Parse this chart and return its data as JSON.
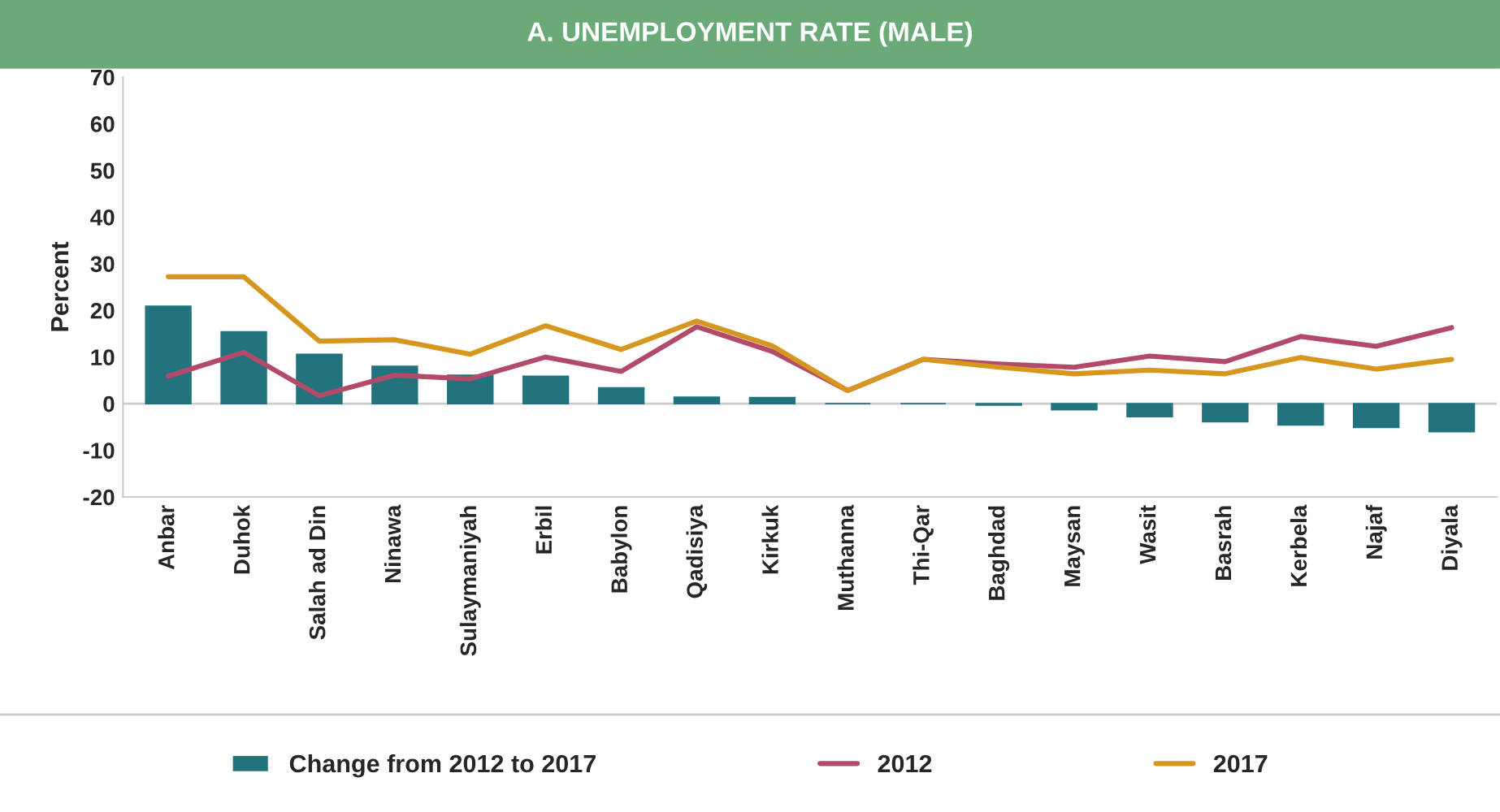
{
  "chart_data": {
    "type": "bar",
    "title": "A. UNEMPLOYMENT RATE (MALE)",
    "ylabel": "Percent",
    "categories": [
      "Anbar",
      "Duhok",
      "Salah ad Din",
      "Ninawa",
      "Sulaymaniyah",
      "Erbil",
      "Babylon",
      "Qadisiya",
      "Kirkuk",
      "Muthanna",
      "Thi-Qar",
      "Baghdad",
      "Maysan",
      "Wasit",
      "Basrah",
      "Kerbela",
      "Najaf",
      "Diyala"
    ],
    "series": [
      {
        "name": "Change from 2012 to 2017",
        "color": "#23737f",
        "values": [
          20.9,
          15.4,
          10.6,
          8.0,
          6.1,
          5.9,
          3.4,
          1.4,
          1.3,
          0,
          0,
          -0.3,
          -1.3,
          -2.8,
          -3.9,
          -4.6,
          -5.1,
          -6.0
        ]
      },
      {
        "name": "2012",
        "type": "line",
        "color": "#b24a6a",
        "values": [
          5.9,
          11.0,
          1.7,
          6.1,
          5.3,
          10.0,
          6.9,
          16.5,
          11.2,
          2.8,
          9.5,
          8.5,
          7.8,
          10.2,
          9.0,
          14.4,
          12.3,
          16.3
        ]
      },
      {
        "name": "2017",
        "type": "line",
        "color": "#d6961f",
        "values": [
          27.2,
          27.2,
          13.4,
          13.7,
          10.6,
          16.7,
          11.6,
          17.7,
          12.4,
          2.8,
          9.5,
          7.8,
          6.4,
          7.2,
          6.4,
          9.9,
          7.4,
          9.5
        ]
      }
    ],
    "ylim": [
      -20,
      70
    ],
    "yticks": [
      -20,
      -10,
      0,
      10,
      20,
      30,
      40,
      50,
      60,
      70
    ],
    "ref_lines": [
      {
        "axis": "y",
        "value": 0,
        "color": "#cccccc"
      }
    ],
    "grid": false,
    "legend": "bottom",
    "line_style": "solid",
    "marker": "none"
  }
}
